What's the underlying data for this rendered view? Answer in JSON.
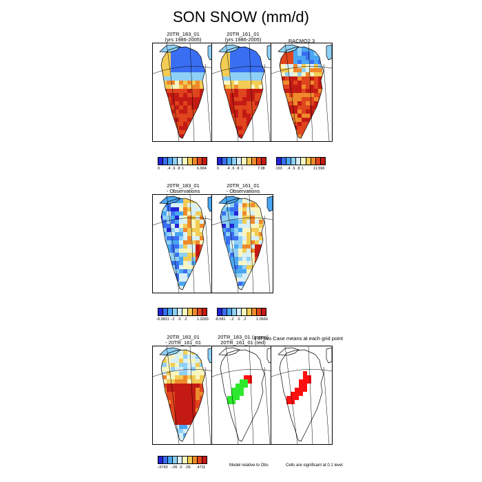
{
  "title": "SON SNOW (mm/d)",
  "palette": [
    "#2424d6",
    "#3a6ef2",
    "#4aa6f2",
    "#8fd0f5",
    "#d8eff8",
    "#f8f6c0",
    "#f2cc54",
    "#ef8a2c",
    "#e0451d",
    "#c41a14"
  ],
  "row1": [
    {
      "title1": "20TR_183_01",
      "title2": "(yrs 1986-2005)",
      "labels": [
        "0",
        ".4",
        ".6",
        ".8",
        "1",
        "6.904"
      ]
    },
    {
      "title1": "20TR_161_01",
      "title2": "(yrs 1986-2005)",
      "labels": [
        "0",
        ".4",
        ".6",
        ".8",
        "1",
        "7.08"
      ]
    },
    {
      "title1": "RACMO2.3",
      "title2": "",
      "labels": [
        ".193",
        ".4",
        ".6",
        ".8",
        "1",
        "11.596"
      ]
    }
  ],
  "row2": [
    {
      "title1": "20TR_183_01",
      "title2": "- Observations",
      "labels": [
        "-8.3831",
        "-.2",
        ".0",
        ".2",
        "1.0283"
      ]
    },
    {
      "title1": "20TR_161_01",
      "title2": "- Observations",
      "labels": [
        "-8.581",
        "-.2",
        ".0",
        ".2",
        "1.0569"
      ]
    }
  ],
  "row3": {
    "diff": {
      "title1": "20TR_183_01",
      "title2": "- 20TR_161_01",
      "labels": [
        "-.6743",
        "-.06",
        ".0",
        ".06",
        ".4711"
      ]
    },
    "sig_title1": "20TR_183_01 (green)",
    "sig_title2": "20TR_161_01 (red)",
    "sig_title3": "t of two Case means at each grid point",
    "note_left": "Model relative to Obs",
    "note_right": "Cells are significant at 0.1 level"
  },
  "sig_colors": {
    "green": "#2ee82e",
    "red": "#ff1010"
  }
}
